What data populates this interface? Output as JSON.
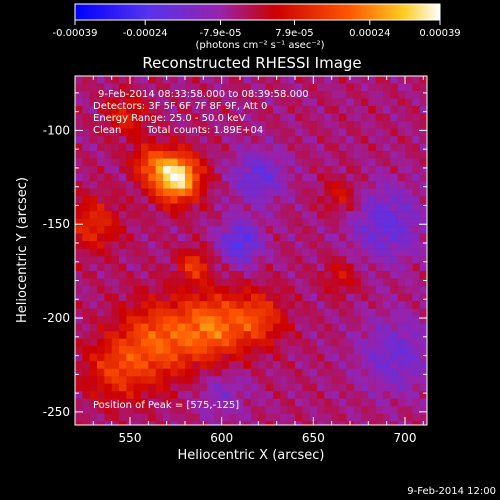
{
  "chart_data": {
    "type": "heatmap",
    "title": "Reconstructed RHESSI Image",
    "xlabel": "Heliocentric X (arcsec)",
    "ylabel": "Heliocentric Y (arcsec)",
    "xlim": [
      520,
      712
    ],
    "ylim": [
      -257,
      -71
    ],
    "xticks": [
      550,
      600,
      650,
      700
    ],
    "xtick_labels": [
      "550",
      "600",
      "650",
      "700"
    ],
    "yticks": [
      -100,
      -150,
      -200,
      -250
    ],
    "ytick_labels": [
      "-100",
      "-150",
      "-200",
      "-250"
    ],
    "colorbar": {
      "range": [
        -0.00039,
        0.00039
      ],
      "ticks": [
        -0.00039,
        -0.00024,
        -7.9e-05,
        7.9e-05,
        0.00024,
        0.00039
      ],
      "tick_labels": [
        "-0.00039",
        "-0.00024",
        "-7.9e-05",
        "7.9e-05",
        "0.00024",
        "0.00039"
      ],
      "unit_label": "(photons cm⁻² s⁻¹ asec⁻²)"
    },
    "annotations": {
      "time_range": "9-Feb-2014 08:33:58.000 to 08:39:58.000",
      "detectors": "Detectors: 3F 5F 6F 7F 8F 9F, Att 0",
      "energy_range": "Energy Range: 25.0 - 50.0 keV",
      "clean": "Clean",
      "total_counts": "Total counts: 1.89E+04",
      "peak_position": "Position of Peak = [575,-125]"
    },
    "peak": {
      "x": 575,
      "y": -125
    },
    "sources": [
      {
        "x": 575,
        "y": -125,
        "sigma": 9,
        "amp": 1.0
      },
      {
        "x": 560,
        "y": -117,
        "sigma": 7,
        "amp": 0.35
      },
      {
        "x": 595,
        "y": -205,
        "sigma": 13,
        "amp": 0.55
      },
      {
        "x": 565,
        "y": -212,
        "sigma": 15,
        "amp": 0.5
      },
      {
        "x": 620,
        "y": -200,
        "sigma": 10,
        "amp": 0.4
      },
      {
        "x": 542,
        "y": -228,
        "sigma": 12,
        "amp": 0.35
      },
      {
        "x": 585,
        "y": -172,
        "sigma": 6,
        "amp": 0.4
      },
      {
        "x": 530,
        "y": -150,
        "sigma": 10,
        "amp": 0.35
      },
      {
        "x": 665,
        "y": -135,
        "sigma": 7,
        "amp": 0.25
      },
      {
        "x": 665,
        "y": -178,
        "sigma": 7,
        "amp": 0.22
      },
      {
        "x": 548,
        "y": -92,
        "sigma": 8,
        "amp": 0.3
      },
      {
        "x": 610,
        "y": -160,
        "sigma": 8,
        "amp": -0.45
      },
      {
        "x": 620,
        "y": -125,
        "sigma": 10,
        "amp": -0.35
      },
      {
        "x": 690,
        "y": -150,
        "sigma": 14,
        "amp": -0.35
      },
      {
        "x": 695,
        "y": -220,
        "sigma": 14,
        "amp": -0.3
      },
      {
        "x": 600,
        "y": -240,
        "sigma": 10,
        "amp": -0.2
      }
    ]
  },
  "footer": {
    "timestamp": "9-Feb-2014 12:00"
  }
}
